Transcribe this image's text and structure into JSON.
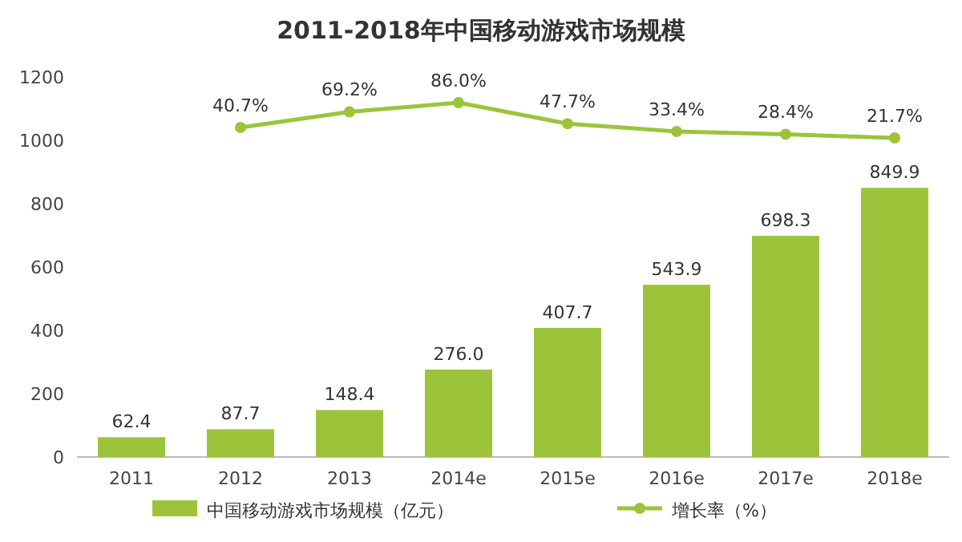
{
  "chart_data": {
    "type": "bar",
    "title": "2011-2018年中国移动游戏市场规模",
    "categories": [
      "2011",
      "2012",
      "2013",
      "2014e",
      "2015e",
      "2016e",
      "2017e",
      "2018e"
    ],
    "series": [
      {
        "name": "中国移动游戏市场规模（亿元）",
        "color": "#9cc43b",
        "values": [
          62.4,
          87.7,
          148.4,
          276.0,
          407.7,
          543.9,
          698.3,
          849.9
        ],
        "value_labels": [
          "62.4",
          "87.7",
          "148.4",
          "276.0",
          "407.7",
          "543.9",
          "698.3",
          "849.9"
        ]
      },
      {
        "name": "增长率（%）",
        "type": "line",
        "axis": "y2",
        "color": "#9cc43b",
        "marker": "circle",
        "values": [
          null,
          40.7,
          69.2,
          86.0,
          47.7,
          33.4,
          28.4,
          21.7
        ],
        "value_labels": [
          null,
          "40.7%",
          "69.2%",
          "86.0%",
          "47.7%",
          "33.4%",
          "28.4%",
          "21.7%"
        ]
      }
    ],
    "ylim": [
      0,
      1200
    ],
    "yticks": [
      0,
      200,
      400,
      600,
      800,
      1000,
      1200
    ],
    "legend": "bottom",
    "grid": false
  }
}
